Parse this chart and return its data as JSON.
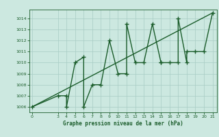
{
  "xlabel": "Graphe pression niveau de la mer (hPa)",
  "background_color": "#cce8e0",
  "line_color": "#1a5c2a",
  "grid_color": "#a8ccc4",
  "x_data": [
    0,
    3,
    4,
    4,
    5,
    6,
    6,
    7,
    8,
    9,
    10,
    11,
    11,
    12,
    13,
    14,
    15,
    15,
    16,
    17,
    17,
    18,
    18,
    19,
    20,
    21
  ],
  "y_data": [
    1006,
    1007,
    1007,
    1006,
    1010,
    1010.5,
    1006,
    1008,
    1008,
    1012,
    1009,
    1009,
    1013.5,
    1010,
    1010,
    1013.5,
    1010,
    1010,
    1010,
    1010,
    1014,
    1010,
    1011,
    1011,
    1011,
    1014.5
  ],
  "trend_x": [
    0,
    21
  ],
  "trend_y": [
    1006,
    1014.5
  ],
  "ylim": [
    1005.5,
    1014.8
  ],
  "xlim": [
    -0.3,
    21.5
  ],
  "yticks": [
    1006,
    1007,
    1008,
    1009,
    1010,
    1011,
    1012,
    1013,
    1014
  ],
  "xticks": [
    0,
    3,
    4,
    5,
    6,
    7,
    8,
    9,
    10,
    11,
    12,
    13,
    14,
    15,
    16,
    17,
    18,
    19,
    20,
    21
  ],
  "marker_size": 4,
  "linewidth": 1.0,
  "tick_fontsize": 4.5,
  "xlabel_fontsize": 5.5
}
